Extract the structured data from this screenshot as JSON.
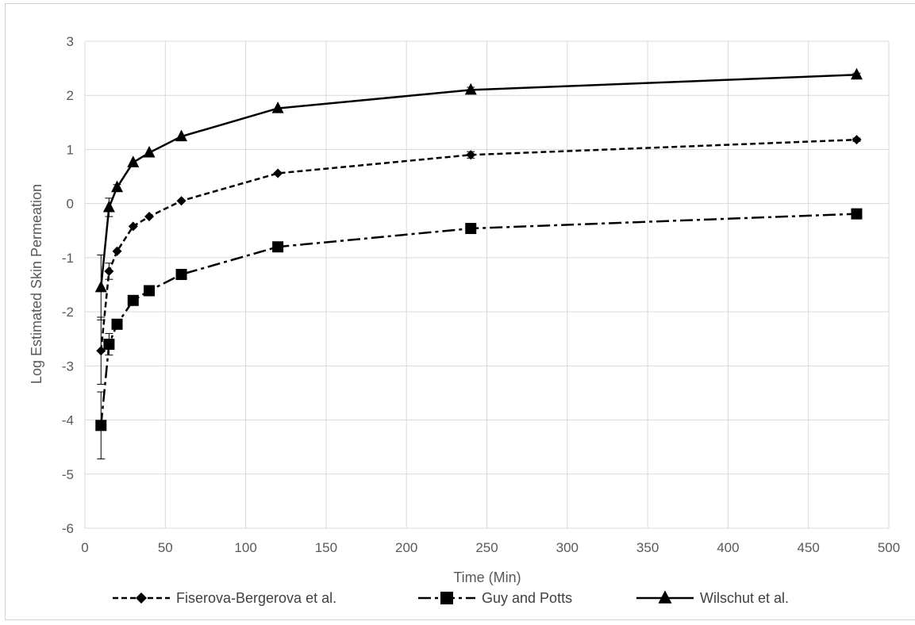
{
  "chart_data": {
    "type": "line",
    "title": "",
    "xlabel": "Time (Min)",
    "ylabel": "Log Estimated Skin Permeation",
    "xlim": [
      0,
      500
    ],
    "ylim": [
      -6,
      3
    ],
    "x_ticks": [
      "0",
      "50",
      "100",
      "150",
      "200",
      "250",
      "300",
      "350",
      "400",
      "450",
      "500"
    ],
    "y_ticks": [
      "3",
      "2",
      "1",
      "0",
      "-1",
      "-2",
      "-3",
      "-4",
      "-5",
      "-6"
    ],
    "grid": true,
    "legend_position": "bottom",
    "series": [
      {
        "name": "Fiserova-Bergerova et al.",
        "line_style": "dashed",
        "marker": "diamond",
        "color": "#000000",
        "x": [
          10,
          15,
          20,
          30,
          40,
          60,
          120,
          240,
          480
        ],
        "y": [
          -2.72,
          -1.25,
          -0.88,
          -0.42,
          -0.24,
          0.05,
          0.56,
          0.9,
          1.18
        ],
        "error": [
          0.62,
          0.15,
          0,
          0,
          0,
          0,
          0,
          0.06,
          0.03
        ]
      },
      {
        "name": "Guy and Potts",
        "line_style": "dash-dot",
        "marker": "square",
        "color": "#000000",
        "x": [
          10,
          15,
          20,
          30,
          40,
          60,
          120,
          240,
          480
        ],
        "y": [
          -4.1,
          -2.6,
          -2.23,
          -1.79,
          -1.61,
          -1.31,
          -0.8,
          -0.46,
          -0.19
        ],
        "error": [
          0.62,
          0.2,
          0,
          0,
          0,
          0,
          0,
          0,
          0
        ]
      },
      {
        "name": "Wilschut et al.",
        "line_style": "solid",
        "marker": "triangle",
        "color": "#000000",
        "x": [
          10,
          15,
          20,
          30,
          40,
          60,
          120,
          240,
          480
        ],
        "y": [
          -1.55,
          -0.07,
          0.3,
          0.76,
          0.94,
          1.24,
          1.76,
          2.1,
          2.38
        ],
        "error": [
          0.6,
          0.17,
          0.05,
          0,
          0,
          0,
          0,
          0.05,
          0.03
        ]
      }
    ]
  }
}
